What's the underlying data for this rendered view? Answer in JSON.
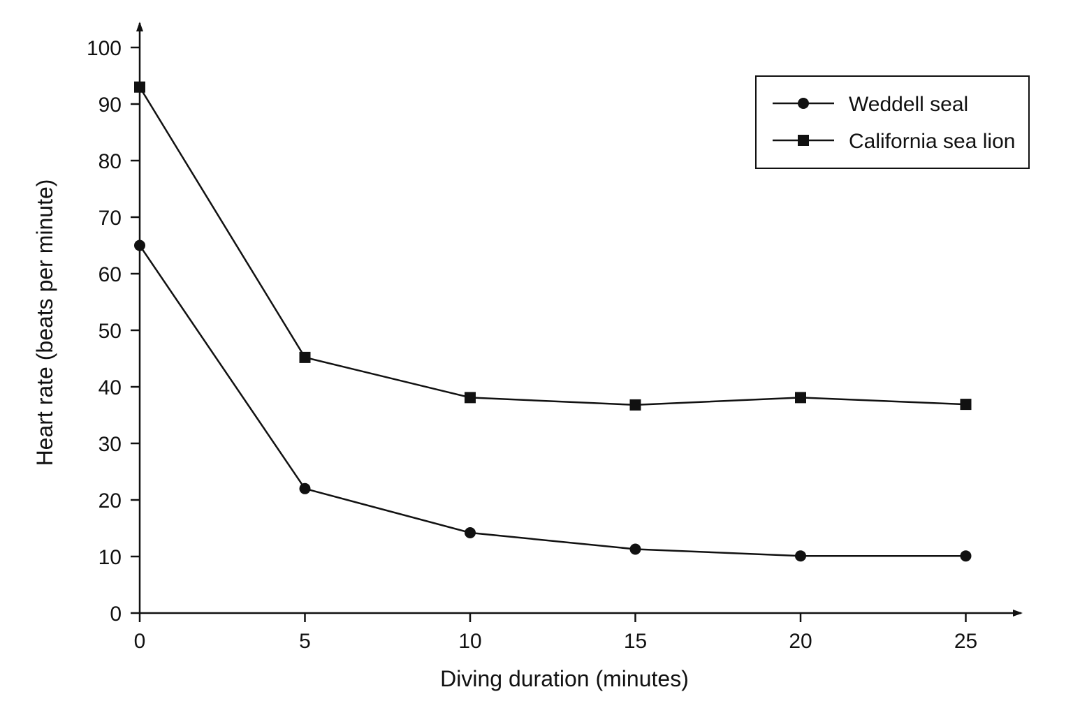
{
  "chart_data": {
    "type": "line",
    "title": "",
    "xlabel": "Diving duration (minutes)",
    "ylabel": "Heart rate (beats per minute)",
    "x": [
      0,
      5,
      10,
      15,
      20,
      25
    ],
    "xlim": [
      0,
      27.5
    ],
    "ylim": [
      0,
      105
    ],
    "xticks": [
      0,
      5,
      10,
      15,
      20,
      25
    ],
    "yticks": [
      0,
      10,
      20,
      30,
      40,
      50,
      60,
      70,
      80,
      90,
      100
    ],
    "grid": false,
    "legend_position": "top-right",
    "series": [
      {
        "name": "Weddell seal",
        "marker": "circle",
        "color": "#111111",
        "values": [
          65,
          22,
          14.2,
          11.3,
          10.1,
          10.1
        ]
      },
      {
        "name": "California sea lion",
        "marker": "square",
        "color": "#111111",
        "values": [
          93,
          45.2,
          38.1,
          36.8,
          38.1,
          36.9
        ]
      }
    ]
  }
}
